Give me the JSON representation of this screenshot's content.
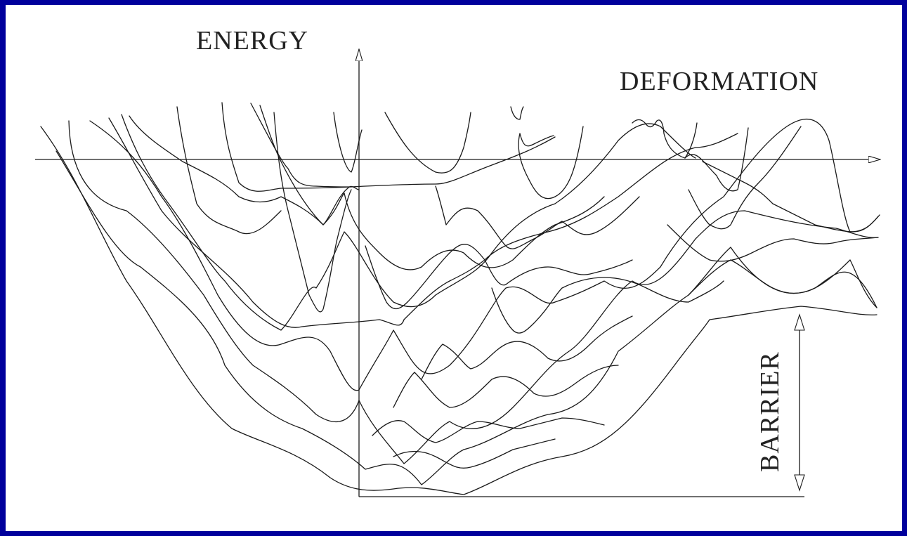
{
  "diagram": {
    "energy_label": "ENERGY",
    "deformation_label": "DEFORMATION",
    "barrier_label": "BARRIER",
    "border_color": "#00009c",
    "background_color": "#ffffff",
    "line_color": "#1a1a1a"
  }
}
